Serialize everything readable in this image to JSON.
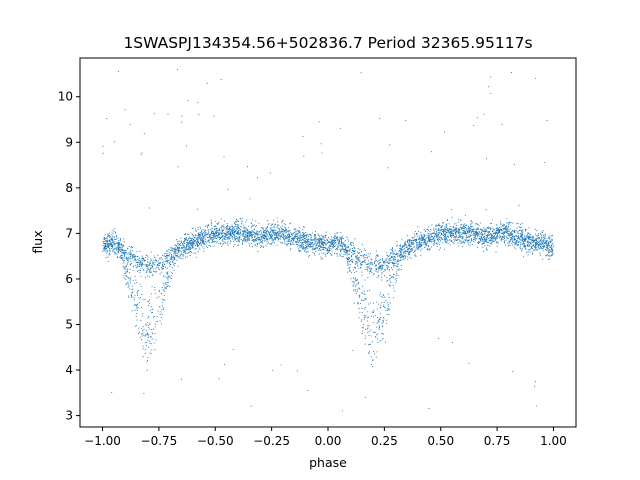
{
  "chart_data": {
    "type": "scatter",
    "title": "1SWASPJ134354.56+502836.7 Period 32365.95117s",
    "xlabel": "phase",
    "ylabel": "flux",
    "xlim": [
      -1.1,
      1.1
    ],
    "ylim": [
      2.75,
      10.85
    ],
    "xticks": [
      "−1.00",
      "−0.75",
      "−0.50",
      "−0.25",
      "0.00",
      "0.25",
      "0.50",
      "0.75",
      "1.00"
    ],
    "xtick_values": [
      -1.0,
      -0.75,
      -0.5,
      -0.25,
      0.0,
      0.25,
      0.5,
      0.75,
      1.0
    ],
    "yticks": [
      "3",
      "4",
      "5",
      "6",
      "7",
      "8",
      "9",
      "10"
    ],
    "ytick_values": [
      3,
      4,
      5,
      6,
      7,
      8,
      9,
      10
    ],
    "grid": false,
    "marker_color": "#1f77b4",
    "series": [
      {
        "name": "",
        "description": "phase-folded light curve, phase -1 to 1 (two cycles)",
        "x": [
          -1.0,
          -0.95,
          -0.9,
          -0.85,
          -0.8,
          -0.75,
          -0.7,
          -0.65,
          -0.6,
          -0.55,
          -0.5,
          -0.45,
          -0.4,
          -0.35,
          -0.3,
          -0.25,
          -0.2,
          -0.15,
          -0.1,
          -0.05,
          0.0,
          0.05,
          0.1,
          0.15,
          0.2,
          0.25,
          0.3,
          0.35,
          0.4,
          0.45,
          0.5,
          0.55,
          0.6,
          0.65,
          0.7,
          0.75,
          0.8,
          0.85,
          0.9,
          0.95,
          1.0
        ],
        "y": [
          6.7,
          6.8,
          6.6,
          6.4,
          6.3,
          6.3,
          6.5,
          6.7,
          6.8,
          6.9,
          7.0,
          7.0,
          7.0,
          7.0,
          6.9,
          7.0,
          7.0,
          6.9,
          6.8,
          6.8,
          6.7,
          6.8,
          6.6,
          6.4,
          6.3,
          6.3,
          6.5,
          6.7,
          6.8,
          6.9,
          7.0,
          7.0,
          7.0,
          7.0,
          6.9,
          7.0,
          7.0,
          6.9,
          6.8,
          6.8,
          6.7
        ],
        "eclipse_minimum_flux": 4.2,
        "eclipse_phases": [
          -0.8,
          0.2
        ]
      }
    ]
  }
}
